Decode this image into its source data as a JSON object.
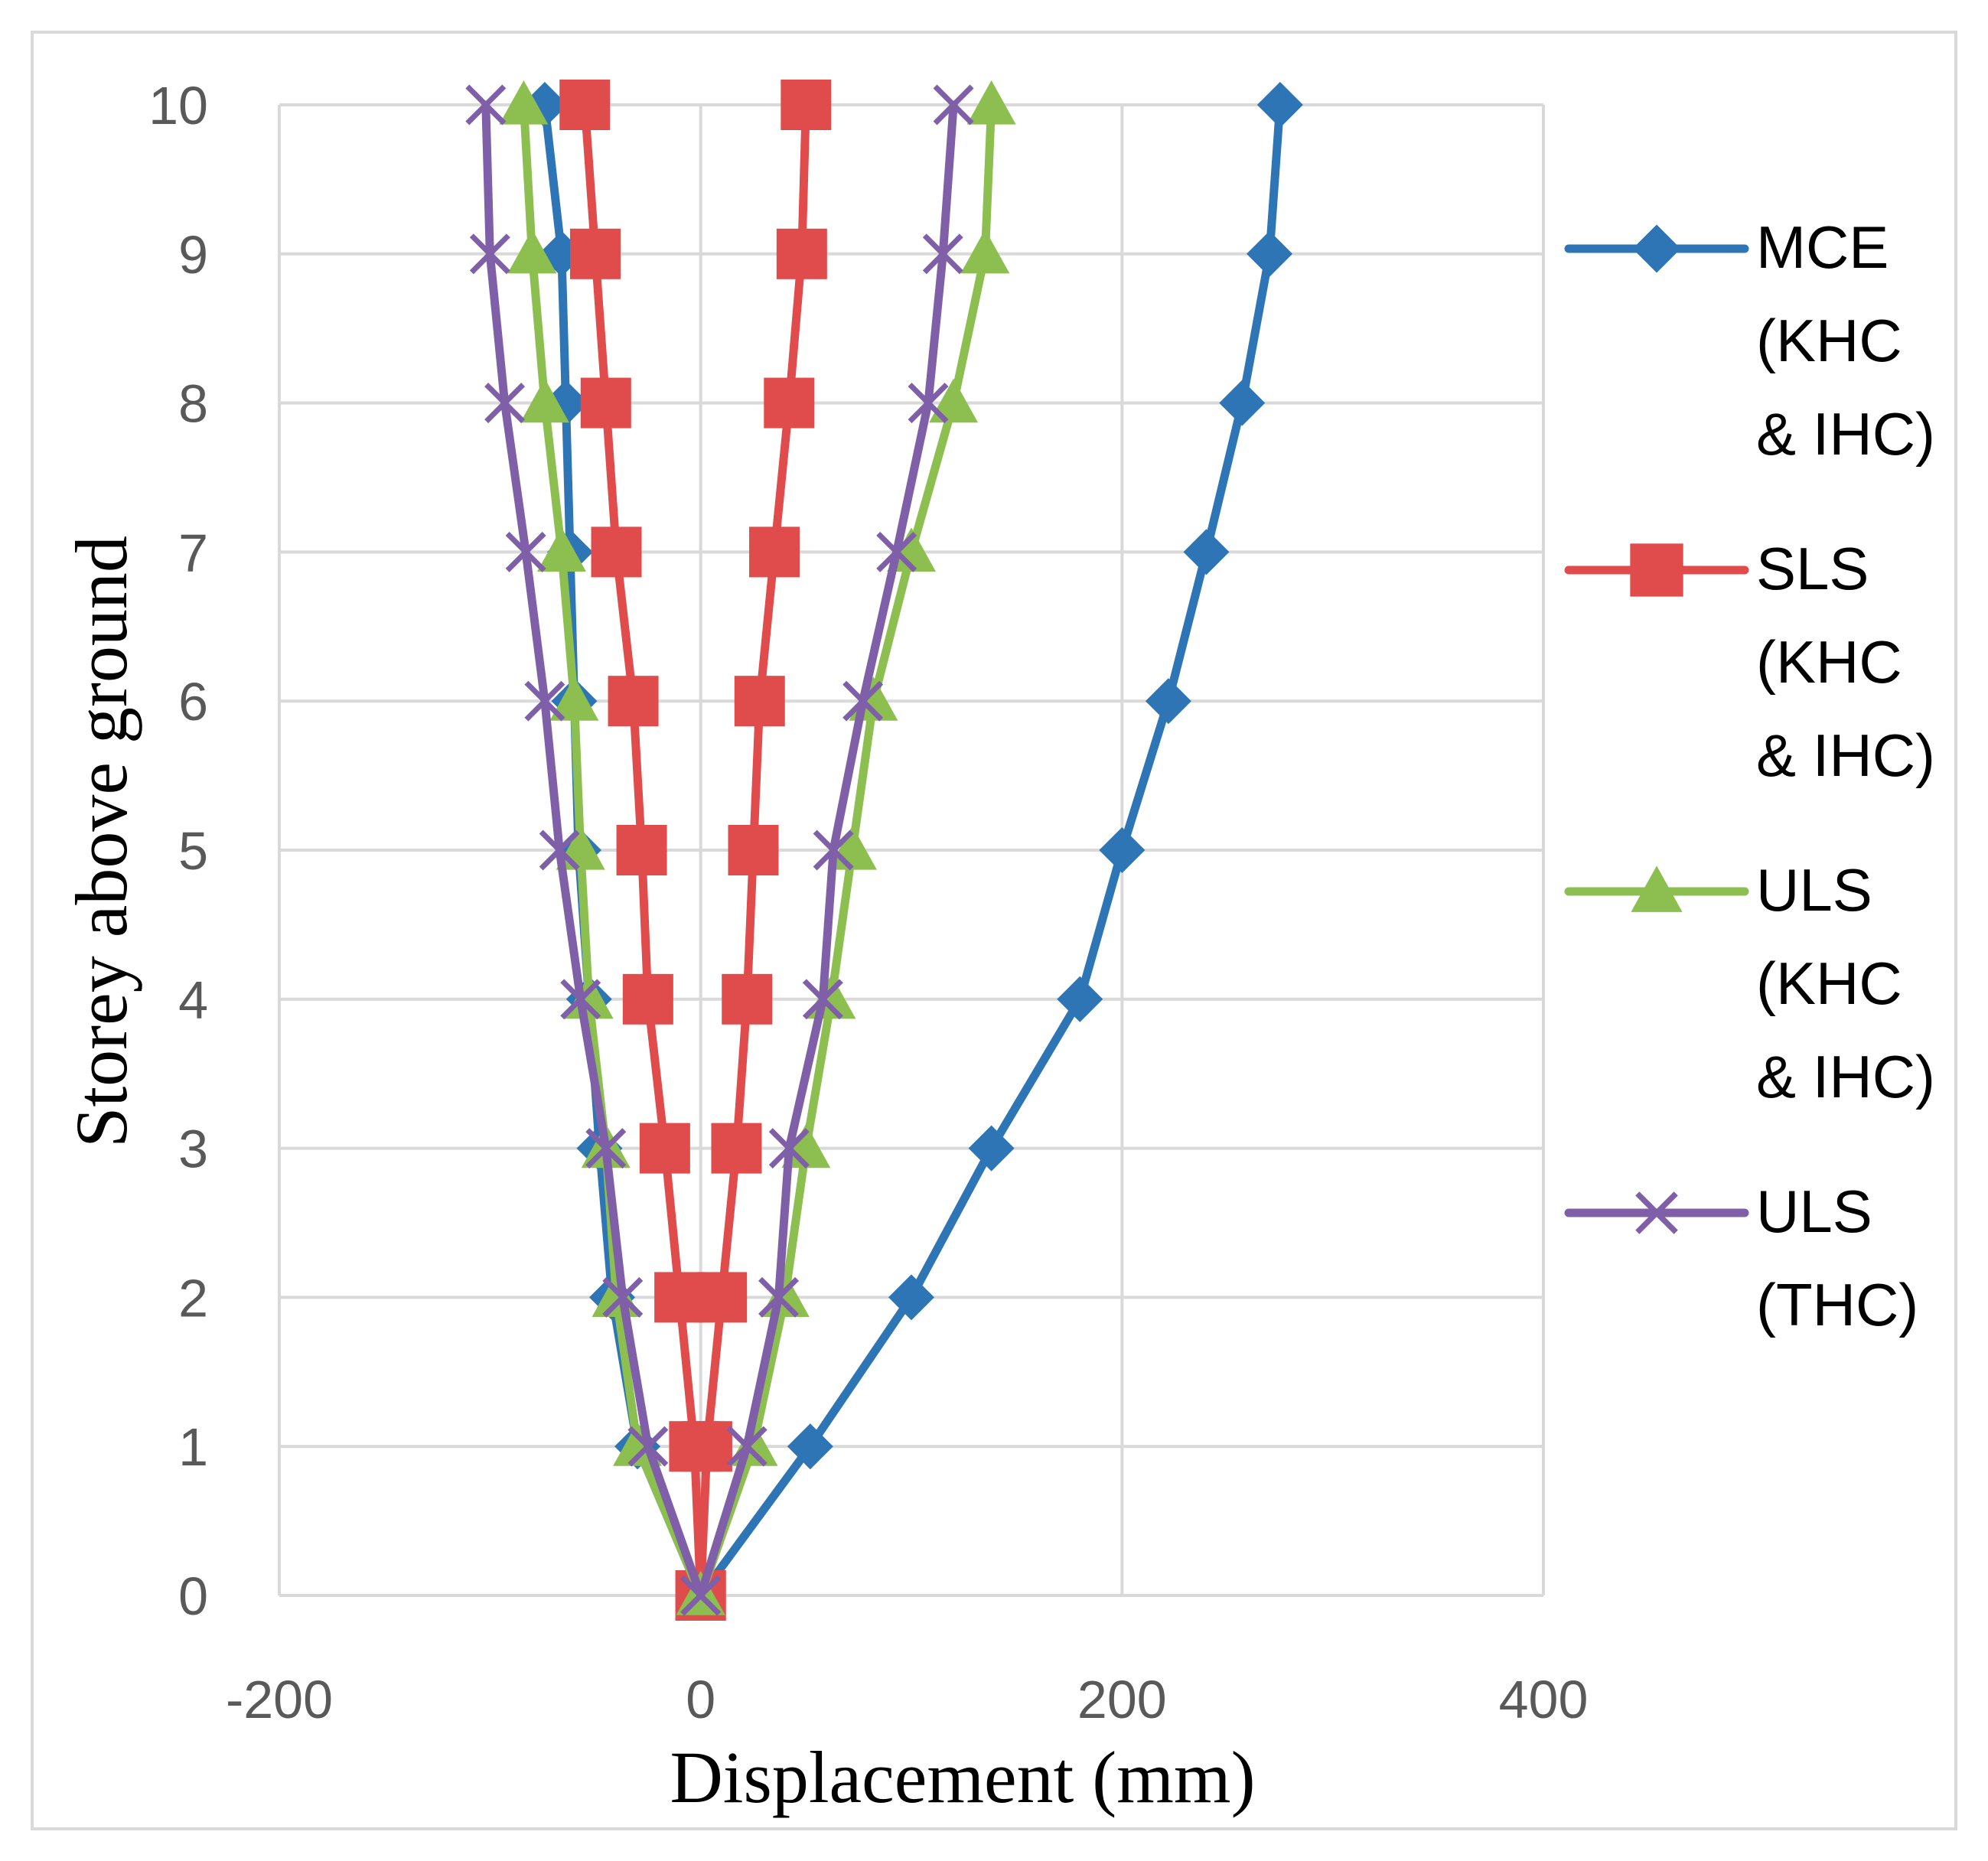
{
  "chart_data": {
    "type": "line",
    "title": "",
    "xlabel": "Displacement (mm)",
    "ylabel": "Storey above ground",
    "xlim": [
      -200,
      400
    ],
    "ylim": [
      0,
      10
    ],
    "xticks": [
      "-200",
      "0",
      "200",
      "400"
    ],
    "yticks": [
      "0",
      "1",
      "2",
      "3",
      "4",
      "5",
      "6",
      "7",
      "8",
      "9",
      "10"
    ],
    "grid": true,
    "legend_position": "right",
    "series": [
      {
        "name": "MCE (KHC & IHC)",
        "legend_lines": [
          "MCE",
          "(KHC",
          "& IHC)"
        ],
        "color": "#2e75b6",
        "marker": "diamond",
        "branches": [
          {
            "x": [
              0,
              52,
              100,
              138,
              180,
              200,
              222,
              240,
              257,
              270,
              275
            ],
            "y": [
              0,
              1,
              2,
              3,
              4,
              5,
              6,
              7,
              8,
              9,
              10
            ]
          },
          {
            "x": [
              0,
              -30,
              -42,
              -48,
              -53,
              -58,
              -60,
              -62,
              -64,
              -66,
              -74
            ],
            "y": [
              0,
              1,
              2,
              3,
              4,
              5,
              6,
              7,
              8,
              9,
              10
            ]
          }
        ]
      },
      {
        "name": "SLS (KHC & IHC)",
        "legend_lines": [
          "SLS",
          "(KHC",
          "& IHC)"
        ],
        "color": "#e04b4b",
        "marker": "square",
        "branches": [
          {
            "x": [
              0,
              3,
              10,
              17,
              22,
              25,
              28,
              35,
              42,
              48,
              50
            ],
            "y": [
              0,
              1,
              2,
              3,
              4,
              5,
              6,
              7,
              8,
              9,
              10
            ]
          },
          {
            "x": [
              0,
              -3,
              -10,
              -17,
              -25,
              -28,
              -32,
              -40,
              -45,
              -50,
              -55
            ],
            "y": [
              0,
              1,
              2,
              3,
              4,
              5,
              6,
              7,
              8,
              9,
              10
            ]
          }
        ]
      },
      {
        "name": "ULS (KHC & IHC)",
        "legend_lines": [
          "ULS",
          "(KHC",
          "& IHC)"
        ],
        "color": "#8cbf4f",
        "marker": "triangle",
        "branches": [
          {
            "x": [
              0,
              25,
              40,
              50,
              62,
              72,
              82,
              100,
              120,
              135,
              138
            ],
            "y": [
              0,
              1,
              2,
              3,
              4,
              5,
              6,
              7,
              8,
              9,
              10
            ]
          },
          {
            "x": [
              0,
              -30,
              -40,
              -45,
              -53,
              -57,
              -60,
              -66,
              -74,
              -80,
              -84
            ],
            "y": [
              0,
              1,
              2,
              3,
              4,
              5,
              6,
              7,
              8,
              9,
              10
            ]
          }
        ]
      },
      {
        "name": "ULS (THC)",
        "legend_lines": [
          "ULS",
          "(THC)"
        ],
        "color": "#7f5fa8",
        "marker": "x",
        "branches": [
          {
            "x": [
              0,
              22,
              37,
              42,
              58,
              63,
              77,
              93,
              108,
              115,
              120
            ],
            "y": [
              0,
              1,
              2,
              3,
              4,
              5,
              6,
              7,
              8,
              9,
              10
            ]
          },
          {
            "x": [
              0,
              -25,
              -37,
              -45,
              -57,
              -67,
              -74,
              -83,
              -93,
              -100,
              -102
            ],
            "y": [
              0,
              1,
              2,
              3,
              4,
              5,
              6,
              7,
              8,
              9,
              10
            ]
          }
        ]
      }
    ]
  }
}
